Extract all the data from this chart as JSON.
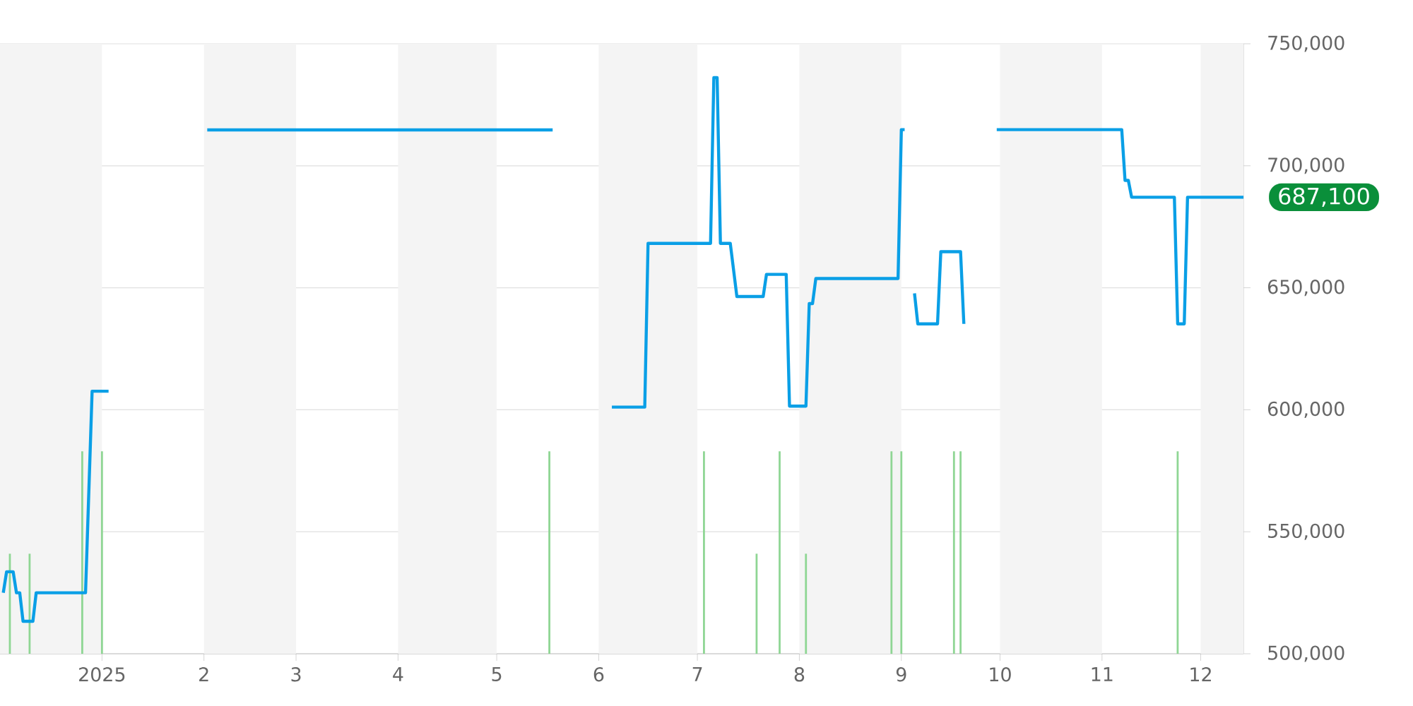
{
  "chart_data": {
    "type": "line",
    "xlim": [
      "2024-12-01",
      "2025-12-14"
    ],
    "ylim": [
      500000,
      750000
    ],
    "xticks": [
      {
        "value": "2025-01-01",
        "label": "2025"
      },
      {
        "value": "2025-02-01",
        "label": "2"
      },
      {
        "value": "2025-03-01",
        "label": "3"
      },
      {
        "value": "2025-04-01",
        "label": "4"
      },
      {
        "value": "2025-05-01",
        "label": "5"
      },
      {
        "value": "2025-06-01",
        "label": "6"
      },
      {
        "value": "2025-07-01",
        "label": "7"
      },
      {
        "value": "2025-08-01",
        "label": "8"
      },
      {
        "value": "2025-09-01",
        "label": "9"
      },
      {
        "value": "2025-10-01",
        "label": "10"
      },
      {
        "value": "2025-11-01",
        "label": "11"
      },
      {
        "value": "2025-12-01",
        "label": "12"
      }
    ],
    "yticks": [
      {
        "value": 500000,
        "label": "500,000"
      },
      {
        "value": 550000,
        "label": "550,000"
      },
      {
        "value": 600000,
        "label": "600,000"
      },
      {
        "value": 650000,
        "label": "650,000"
      },
      {
        "value": 700000,
        "label": "700,000"
      },
      {
        "value": 750000,
        "label": "750,000"
      }
    ],
    "grid": "y",
    "bands": [
      {
        "axis": "x",
        "from": "2024-12-01",
        "to": "2025-01-01",
        "color": "#f4f4f4"
      },
      {
        "axis": "x",
        "from": "2025-02-01",
        "to": "2025-03-01",
        "color": "#f4f4f4"
      },
      {
        "axis": "x",
        "from": "2025-04-01",
        "to": "2025-05-01",
        "color": "#f4f4f4"
      },
      {
        "axis": "x",
        "from": "2025-06-01",
        "to": "2025-07-01",
        "color": "#f4f4f4"
      },
      {
        "axis": "x",
        "from": "2025-08-01",
        "to": "2025-09-01",
        "color": "#f4f4f4"
      },
      {
        "axis": "x",
        "from": "2025-10-01",
        "to": "2025-11-01",
        "color": "#f4f4f4"
      },
      {
        "axis": "x",
        "from": "2025-12-01",
        "to": "2025-12-14",
        "color": "#f4f4f4"
      }
    ],
    "series": [
      {
        "type": "bar",
        "color": "#8fd694",
        "x": [
          "2024-12-04",
          "2024-12-10",
          "2024-12-26",
          "2025-01-01",
          "2025-05-17",
          "2025-07-03",
          "2025-07-19",
          "2025-07-26",
          "2025-08-03",
          "2025-08-29",
          "2025-09-01",
          "2025-09-17",
          "2025-09-19",
          "2025-11-24"
        ],
        "values": [
          541000,
          541000,
          583000,
          583000,
          583000,
          583000,
          541000,
          583000,
          541000,
          583000,
          583000,
          583000,
          583000,
          583000
        ]
      },
      {
        "color": "#0a9fe6",
        "x": [
          "2024-12-02",
          "2024-12-03",
          "2024-12-05",
          "2024-12-06",
          "2024-12-07",
          "2024-12-08",
          "2024-12-11",
          "2024-12-12",
          "2024-12-27",
          "2024-12-29",
          "2025-01-03",
          "2025-01-20",
          "2025-02-02",
          "2025-05-18",
          "2025-05-30",
          "2025-06-05",
          "2025-06-15",
          "2025-06-16",
          "2025-07-05",
          "2025-07-06",
          "2025-07-07",
          "2025-07-08",
          "2025-07-11",
          "2025-07-13",
          "2025-07-21",
          "2025-07-22",
          "2025-07-28",
          "2025-07-29",
          "2025-08-03",
          "2025-08-04",
          "2025-08-05",
          "2025-08-06",
          "2025-08-31",
          "2025-09-01",
          "2025-09-02",
          "2025-09-03",
          "2025-09-05",
          "2025-09-06",
          "2025-09-12",
          "2025-09-13",
          "2025-09-19",
          "2025-09-20",
          "2025-09-25",
          "2025-09-30",
          "2025-11-07",
          "2025-11-08",
          "2025-11-09",
          "2025-11-10",
          "2025-11-23",
          "2025-11-24",
          "2025-11-26",
          "2025-11-27",
          "2025-12-14"
        ],
        "values": [
          525000,
          533600,
          533600,
          525000,
          525000,
          513300,
          513300,
          525000,
          525000,
          607600,
          607600,
          null,
          714700,
          714700,
          null,
          601100,
          601100,
          668200,
          668200,
          736100,
          736100,
          668200,
          668200,
          646400,
          646400,
          655500,
          655500,
          601500,
          601500,
          643500,
          643500,
          653800,
          653800,
          714800,
          714800,
          null,
          647700,
          635200,
          635200,
          664800,
          664800,
          635200,
          null,
          714800,
          714800,
          694000,
          694000,
          687100,
          687100,
          635200,
          635200,
          687100,
          687100
        ]
      }
    ],
    "annotations": [
      {
        "text": "687,100",
        "x": "2025-12-14",
        "y": 687100
      }
    ]
  }
}
